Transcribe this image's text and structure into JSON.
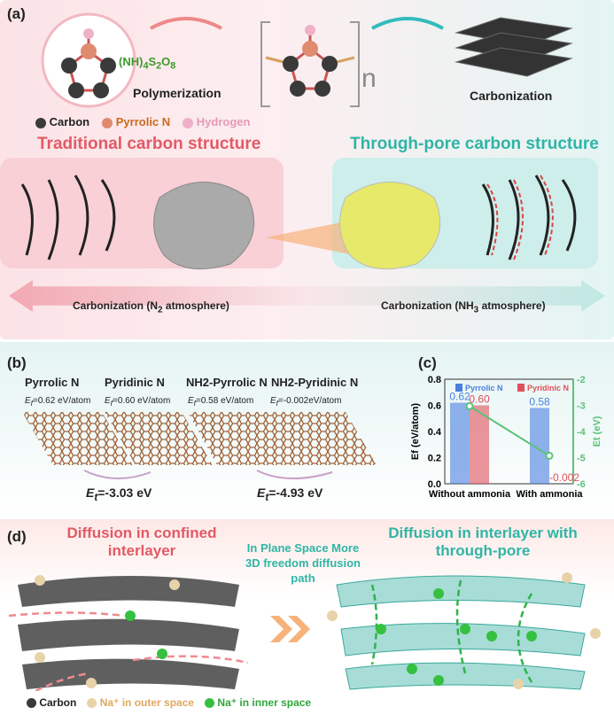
{
  "panel_a": {
    "label": "(a)",
    "reagent": "(NH)4S2O8",
    "reagent_main": "(NH)",
    "reagent_sub1": "4",
    "reagent_mid": "S",
    "reagent_sub2": "2",
    "reagent_end": "O",
    "reagent_sub3": "8",
    "step1": "Polymerization",
    "step2": "Carbonization",
    "subscript_n": "n",
    "legend": [
      {
        "label": "Carbon",
        "color": "#3a3a3a"
      },
      {
        "label": "Pyrrolic N",
        "color": "#e08a70"
      },
      {
        "label": "Hydrogen",
        "color": "#f0b0c8"
      }
    ],
    "left_title": "Traditional carbon structure",
    "right_title": "Through-pore carbon structure",
    "arrow_left": "Carbonization (N",
    "arrow_left_sub": "2",
    "arrow_left_end": " atmosphere)",
    "arrow_right": "Carbonization (NH",
    "arrow_right_sub": "3",
    "arrow_right_end": " atmosphere)"
  },
  "panel_b": {
    "label": "(b)",
    "structures": [
      {
        "name": "Pyrrolic N",
        "ef": "=0.62 eV/atom"
      },
      {
        "name": "Pyridinic N",
        "ef": "=0.60 eV/atom"
      },
      {
        "name": "NH2-Pyrrolic N",
        "ef": "=0.58 eV/atom"
      },
      {
        "name": "NH2-Pyridinic N",
        "ef": "=-0.002eV/atom"
      }
    ],
    "transition1": "=-3.03 eV",
    "transition2": "=-4.93 eV",
    "ef_symbol": "E",
    "ef_sub": "f",
    "et_sub": "t"
  },
  "chart_data": {
    "type": "bar",
    "categories": [
      "Without ammonia",
      "With ammonia"
    ],
    "series": [
      {
        "name": "Pyrrolic N",
        "values": [
          0.62,
          0.58
        ],
        "labels": [
          "0.62",
          "0.58"
        ],
        "color": "#4a7ee0"
      },
      {
        "name": "Pyridinic N",
        "values": [
          0.6,
          -0.002
        ],
        "labels": [
          "0.60",
          "-0.002"
        ],
        "color": "#e0505a"
      }
    ],
    "line": {
      "axis": "right",
      "values": [
        -3.03,
        -4.93
      ],
      "color": "#5cc27a"
    },
    "ylabel": "Ef (eV/atom)",
    "ylabel_right": "Et (eV)",
    "ylim": [
      0,
      0.8
    ],
    "ylim_right": [
      -6,
      -2
    ],
    "yticks": [
      "0.0",
      "0.2",
      "0.4",
      "0.6",
      "0.8"
    ],
    "yticks_right": [
      "-6",
      "-5",
      "-4",
      "-3",
      "-2"
    ],
    "label": "(c)",
    "legend": "top"
  },
  "panel_d": {
    "label": "(d)",
    "left_title": "Diffusion in confined interlayer",
    "right_title": "Diffusion in interlayer with through-pore",
    "middle_text": "In Plane Space More 3D freedom diffusion path",
    "legend": [
      {
        "label": "Carbon",
        "color": "#3a3a3a"
      },
      {
        "label": "Na⁺ in outer space",
        "color": "#e8d2a8"
      },
      {
        "label": "Na⁺ in inner space",
        "color": "#35c040"
      }
    ]
  }
}
